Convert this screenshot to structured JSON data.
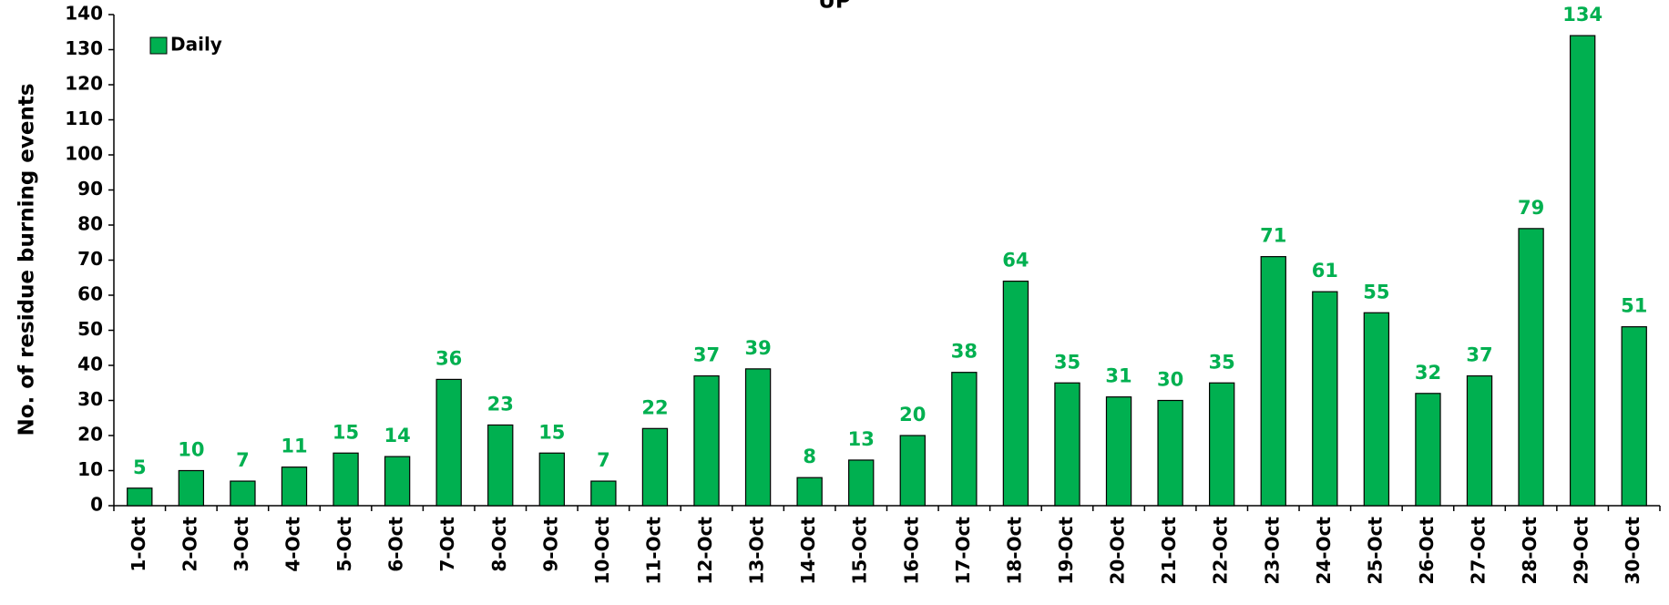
{
  "chart_data": {
    "type": "bar",
    "title": "UP",
    "y_label": "No. of residue burning events",
    "categories": [
      "1-Oct",
      "2-Oct",
      "3-Oct",
      "4-Oct",
      "5-Oct",
      "6-Oct",
      "7-Oct",
      "8-Oct",
      "9-Oct",
      "10-Oct",
      "11-Oct",
      "12-Oct",
      "13-Oct",
      "14-Oct",
      "15-Oct",
      "16-Oct",
      "17-Oct",
      "18-Oct",
      "19-Oct",
      "20-Oct",
      "21-Oct",
      "22-Oct",
      "23-Oct",
      "24-Oct",
      "25-Oct",
      "26-Oct",
      "27-Oct",
      "28-Oct",
      "29-Oct",
      "30-Oct"
    ],
    "series": [
      {
        "name": "Daily",
        "color": "#00b050",
        "values": [
          5,
          10,
          7,
          11,
          15,
          14,
          36,
          23,
          15,
          7,
          22,
          37,
          39,
          8,
          13,
          20,
          38,
          64,
          35,
          31,
          30,
          35,
          71,
          61,
          55,
          32,
          37,
          79,
          134,
          51
        ]
      }
    ],
    "ylim": [
      0,
      140
    ],
    "yticks": [
      0,
      10,
      20,
      30,
      40,
      50,
      60,
      70,
      80,
      90,
      100,
      110,
      120,
      130,
      140
    ],
    "legend": "top-left"
  }
}
